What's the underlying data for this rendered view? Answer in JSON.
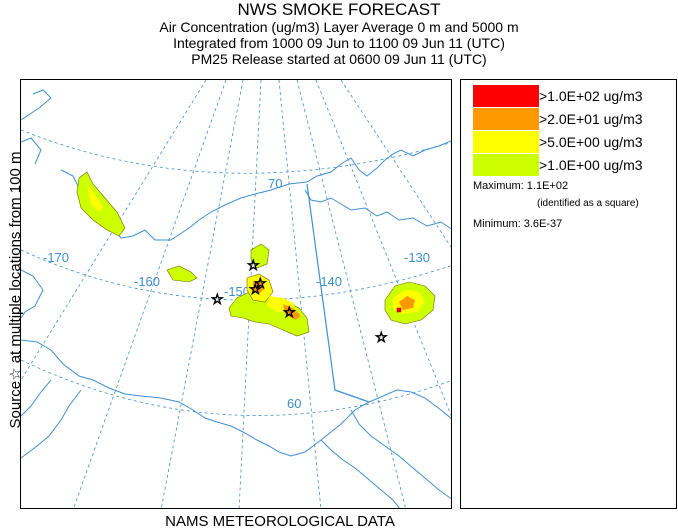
{
  "header": {
    "title": "NWS SMOKE FORECAST",
    "line1": "Air Concentration (ug/m3) Layer Average    0 m and  5000 m",
    "line2": "Integrated from 1000 09 Jun to 1100 09 Jun 11 (UTC)",
    "line3": "PM25 Release started at 0600 09 Jun 11 (UTC)"
  },
  "side_label": "Source☆ at multiple locations   from   100 m",
  "footer": "NAMS METEOROLOGICAL DATA",
  "legend": {
    "items": [
      {
        "color": "#ff0000",
        "label": ">1.0E+02 ug/m3"
      },
      {
        "color": "#ff9900",
        "label": ">2.0E+01 ug/m3"
      },
      {
        "color": "#ffff00",
        "label": ">5.0E+00 ug/m3"
      },
      {
        "color": "#ccff00",
        "label": ">1.0E+00 ug/m3"
      }
    ],
    "maximum": "Maximum: 1.1E+02",
    "maximum_note": "(identified as a square)",
    "minimum": "Minimum: 3.6E-37"
  },
  "map": {
    "graticule_color": "#3f8fd0",
    "coast_color": "#3f8fd0",
    "labels": {
      "lon_170": "-170",
      "lon_160": "-160",
      "lon_150": "-150",
      "lon_140": "-140",
      "lon_130": "-130",
      "lat_70": "70",
      "lat_60": "60"
    },
    "star_glyph": "☆"
  }
}
